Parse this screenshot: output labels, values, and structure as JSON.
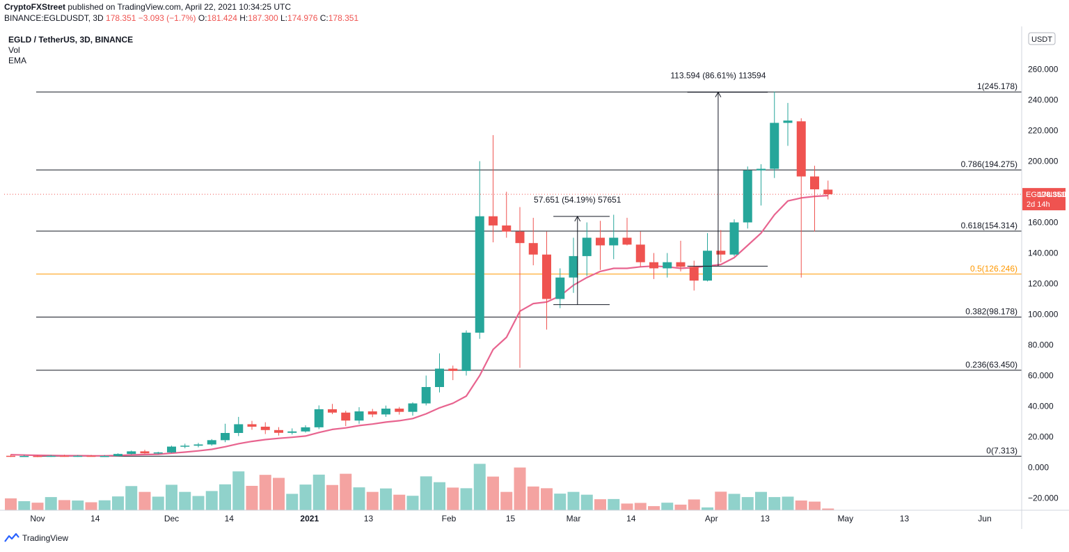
{
  "header": {
    "publisher": "CryptoFXStreet",
    "published_text": "published on TradingView.com, April 22, 2021 10:34:25 UTC",
    "symbol_line": "BINANCE:EGLDUSDT, 3D",
    "last": "178.351",
    "change": "−3.093 (−1.7%)",
    "o_label": "O:",
    "o_val": "181.424",
    "h_label": "H:",
    "h_val": "187.300",
    "l_label": "L:",
    "l_val": "174.976",
    "c_label": "C:",
    "c_val": "178.351"
  },
  "legend": {
    "title": "EGLD / TetherUS, 3D, BINANCE",
    "vol": "Vol",
    "ema": "EMA"
  },
  "axis": {
    "currency": "USDT",
    "price_label_name": "EGLDUSDT",
    "price_label_value": "178.351",
    "countdown": "2d 14h"
  },
  "footer": {
    "brand": "TradingView"
  },
  "colors": {
    "up": "#26a69a",
    "down": "#ef5350",
    "ema": "#e8648f",
    "vol_up": "#90d2cb",
    "vol_down": "#f4a3a1",
    "fib_orange": "#ff9800"
  },
  "chart_data": {
    "type": "candlestick",
    "y_ticks": [
      "260.000",
      "240.000",
      "220.000",
      "200.000",
      "180.000",
      "160.000",
      "140.000",
      "120.000",
      "100.000",
      "80.000",
      "60.000",
      "40.000",
      "20.000",
      "0.000",
      "−20.000"
    ],
    "y_tick_values": [
      260,
      240,
      220,
      200,
      180,
      160,
      140,
      120,
      100,
      80,
      60,
      40,
      20,
      0,
      -20
    ],
    "ylim": [
      -28,
      272
    ],
    "x_ticks": [
      {
        "label": "Nov",
        "idx": 2
      },
      {
        "label": "14",
        "idx": 6.3
      },
      {
        "label": "Dec",
        "idx": 12
      },
      {
        "label": "14",
        "idx": 16.3
      },
      {
        "label": "2021",
        "idx": 22.3,
        "bold": true
      },
      {
        "label": "13",
        "idx": 26.7
      },
      {
        "label": "Feb",
        "idx": 32.7
      },
      {
        "label": "15",
        "idx": 37.3
      },
      {
        "label": "Mar",
        "idx": 42
      },
      {
        "label": "14",
        "idx": 46.3
      },
      {
        "label": "Apr",
        "idx": 52.3
      },
      {
        "label": "13",
        "idx": 56.3
      },
      {
        "label": "May",
        "idx": 62.3
      },
      {
        "label": "13",
        "idx": 66.7
      },
      {
        "label": "Jun",
        "idx": 72.7
      }
    ],
    "candles": [
      [
        7.6,
        8.6,
        6.8,
        7.4,
        5.5
      ],
      [
        7.4,
        8.2,
        6.9,
        7.5,
        4.2
      ],
      [
        7.5,
        8.0,
        6.7,
        7.1,
        3.5
      ],
      [
        7.1,
        8.2,
        6.9,
        7.6,
        6.1
      ],
      [
        7.6,
        8.3,
        7.0,
        7.4,
        4.7
      ],
      [
        7.4,
        8.1,
        6.9,
        7.6,
        4.5
      ],
      [
        7.6,
        8.2,
        7.1,
        7.3,
        3.7
      ],
      [
        7.3,
        8.1,
        6.9,
        7.5,
        4.6
      ],
      [
        7.5,
        9.2,
        7.2,
        8.8,
        6.4
      ],
      [
        8.8,
        11.0,
        8.4,
        10.5,
        11.2
      ],
      [
        10.5,
        11.5,
        8.9,
        9.2,
        8.5
      ],
      [
        9.2,
        10.2,
        8.6,
        9.8,
        6.3
      ],
      [
        9.8,
        14.2,
        9.4,
        13.6,
        11.8
      ],
      [
        13.6,
        15.5,
        12.5,
        14.2,
        8.5
      ],
      [
        14.2,
        16.0,
        13.1,
        15.0,
        6.6
      ],
      [
        15.0,
        18.5,
        14.2,
        17.8,
        8.9
      ],
      [
        17.8,
        28.5,
        16.5,
        22.5,
        12.0
      ],
      [
        22.5,
        33.0,
        20.5,
        28.2,
        18.0
      ],
      [
        28.2,
        30.4,
        24.6,
        26.6,
        11.3
      ],
      [
        26.6,
        29.5,
        21.8,
        24.4,
        16.4
      ],
      [
        24.4,
        26.3,
        20.8,
        22.6,
        15.0
      ],
      [
        22.6,
        25.5,
        21.5,
        23.5,
        7.6
      ],
      [
        23.5,
        27.5,
        22.8,
        26.2,
        11.9
      ],
      [
        26.2,
        40.5,
        25.0,
        38.0,
        16.5
      ],
      [
        38.0,
        41.5,
        34.8,
        35.8,
        11.7
      ],
      [
        35.8,
        37.0,
        27.0,
        30.6,
        16.9
      ],
      [
        30.6,
        39.3,
        28.5,
        36.6,
        10.6
      ],
      [
        36.6,
        38.2,
        32.8,
        34.6,
        8.5
      ],
      [
        34.6,
        40.4,
        33.0,
        38.4,
        10.1
      ],
      [
        38.4,
        39.5,
        34.5,
        36.3,
        7.2
      ],
      [
        36.3,
        42.5,
        33.8,
        41.8,
        6.7
      ],
      [
        41.8,
        60.0,
        40.5,
        52.5,
        15.7
      ],
      [
        52.5,
        74.5,
        49.0,
        64.5,
        13.0
      ],
      [
        64.5,
        66.5,
        57.0,
        63.0,
        10.5
      ],
      [
        63.0,
        89.5,
        60.0,
        88.0,
        10.2
      ],
      [
        88.0,
        200.0,
        84.0,
        164.0,
        21.5
      ],
      [
        164.0,
        217.0,
        147.0,
        158.0,
        15.6
      ],
      [
        158.0,
        180.0,
        150.0,
        154.0,
        8.5
      ],
      [
        154.0,
        170.0,
        65.0,
        146.5,
        19.8
      ],
      [
        146.5,
        163.0,
        132.0,
        139.0,
        11.0
      ],
      [
        139.0,
        154.0,
        90.0,
        110.0,
        10.2
      ],
      [
        110.0,
        130.0,
        104.0,
        124.0,
        7.7
      ],
      [
        124.0,
        150.0,
        114.0,
        138.0,
        8.5
      ],
      [
        138.0,
        160.0,
        125.0,
        150.0,
        7.2
      ],
      [
        150.0,
        161.0,
        129.0,
        145.0,
        5.1
      ],
      [
        145.0,
        165.0,
        136.0,
        150.0,
        5.2
      ],
      [
        150.0,
        163.0,
        145.0,
        145.5,
        3.1
      ],
      [
        145.5,
        154.0,
        131.0,
        134.0,
        3.4
      ],
      [
        134.0,
        140.0,
        123.0,
        130.0,
        1.9
      ],
      [
        130.0,
        140.0,
        124.0,
        134.0,
        3.5
      ],
      [
        134.0,
        148.0,
        128.0,
        131.0,
        2.6
      ],
      [
        131.0,
        135.0,
        115.5,
        122.0,
        5.0
      ],
      [
        122.0,
        153.0,
        121.5,
        141.5,
        1.3
      ],
      [
        141.5,
        155.0,
        134.0,
        139.0,
        8.6
      ],
      [
        139.0,
        162.0,
        138.0,
        160.0,
        7.6
      ],
      [
        160.0,
        196.5,
        156.0,
        194.0,
        6.1
      ],
      [
        194.0,
        198.0,
        171.0,
        195.0,
        8.5
      ],
      [
        195.0,
        245.5,
        189.0,
        225.0,
        6.1
      ],
      [
        225.0,
        238.0,
        210.0,
        226.5,
        6.3
      ],
      [
        226.0,
        228.0,
        124.0,
        190.0,
        4.5
      ],
      [
        190.0,
        197.0,
        154.0,
        181.6,
        4.0
      ],
      [
        181.4,
        187.3,
        175.0,
        178.35,
        0.8
      ]
    ],
    "ema": [
      8.3,
      8.1,
      7.9,
      7.8,
      7.7,
      7.7,
      7.6,
      7.6,
      7.8,
      8.2,
      8.4,
      8.6,
      9.3,
      10.0,
      10.8,
      11.8,
      13.5,
      15.5,
      17.0,
      18.2,
      19.0,
      19.7,
      20.5,
      22.8,
      24.8,
      25.8,
      27.3,
      28.3,
      29.6,
      30.5,
      31.9,
      35.0,
      38.9,
      41.9,
      46.6,
      60.0,
      77.0,
      85.0,
      102.0,
      107.0,
      108.0,
      112.0,
      119.0,
      124.0,
      128.0,
      130.0,
      130.0,
      131.0,
      131.5,
      131.0,
      130.0,
      130.5,
      131.5,
      132.5,
      137.0,
      145.0,
      153.0,
      165.0,
      174.0,
      176.0,
      177.0,
      177.5
    ],
    "fib_levels": [
      {
        "label": "1(245.178)",
        "value": 245.178
      },
      {
        "label": "0.786(194.275)",
        "value": 194.275
      },
      {
        "label": "0.618(154.314)",
        "value": 154.314
      },
      {
        "label": "0.5(126.246)",
        "value": 126.246,
        "color": "orange"
      },
      {
        "label": "0.382(98.178)",
        "value": 98.178
      },
      {
        "label": "0.236(63.450)",
        "value": 63.45
      },
      {
        "label": "0(7.313)",
        "value": 7.313
      }
    ],
    "measures": [
      {
        "label": "57.651 (54.19%) 57651",
        "from_idx": 40.5,
        "to_idx": 44.7,
        "low": 106.3,
        "high": 163.9,
        "arrow_idx": 42.3
      },
      {
        "label": "113.594 (86.61%) 113594",
        "from_idx": 50.5,
        "to_idx": 56.5,
        "low": 131.4,
        "high": 245.0,
        "arrow_idx": 52.8
      }
    ]
  }
}
